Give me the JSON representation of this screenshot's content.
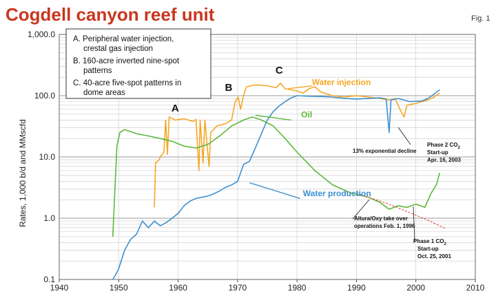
{
  "header": {
    "title": "Cogdell canyon reef unit",
    "fig_label": "Fig. 1"
  },
  "chart_data": {
    "type": "line",
    "ylabel": "Rates, 1,000 b/d and MMscfd",
    "xlim": [
      1940,
      2010
    ],
    "ylim": [
      0.1,
      1000
    ],
    "yscale": "log",
    "x_ticks": [
      "1940",
      "1950",
      "1960",
      "1970",
      "1980",
      "1990",
      "2000",
      "2010"
    ],
    "y_ticks": [
      "0.1",
      "1.0",
      "10.0",
      "100.0",
      "1,000.0"
    ],
    "legend": {
      "placement": "top-left",
      "lines": [
        "A. Peripheral water injection,",
        "crestal gas injection",
        "B. 160-acre inverted nine-spot",
        "patterns",
        "C. 40-acre five-spot patterns in",
        "dome areas"
      ]
    },
    "phase_letters": [
      {
        "text": "A",
        "x": 1959.5,
        "y": 55
      },
      {
        "text": "B",
        "x": 1968.5,
        "y": 120
      },
      {
        "text": "C",
        "x": 1977,
        "y": 230
      }
    ],
    "annotations": {
      "phase2": [
        "Phase 2 CO",
        "Start-up",
        "Apr. 16, 2003"
      ],
      "decline": "13% exponential decline",
      "altura": [
        "Altura/Oxy take over",
        "operations Feb. 1, 1996"
      ],
      "phase1": [
        "Phase 1 CO",
        "Start-up",
        "Oct. 25, 2001"
      ],
      "co2_sub": "2"
    },
    "series": [
      {
        "name": "Water injection",
        "color": "#f5a623",
        "label_pos": [
          1982.5,
          150
        ],
        "points": [
          [
            1956,
            1.5
          ],
          [
            1956.2,
            8
          ],
          [
            1956.8,
            9
          ],
          [
            1957,
            10
          ],
          [
            1957.6,
            12
          ],
          [
            1957.9,
            40
          ],
          [
            1958.2,
            11
          ],
          [
            1958.5,
            45
          ],
          [
            1959.5,
            40
          ],
          [
            1961,
            42
          ],
          [
            1962.5,
            38
          ],
          [
            1963,
            41
          ],
          [
            1963.5,
            6
          ],
          [
            1963.7,
            40
          ],
          [
            1964.2,
            8
          ],
          [
            1964.5,
            40
          ],
          [
            1965.2,
            7
          ],
          [
            1965.5,
            25
          ],
          [
            1966.5,
            32
          ],
          [
            1968,
            35
          ],
          [
            1969,
            40
          ],
          [
            1969.6,
            80
          ],
          [
            1970.1,
            95
          ],
          [
            1970.5,
            60
          ],
          [
            1971,
            100
          ],
          [
            1971.5,
            140
          ],
          [
            1973,
            150
          ],
          [
            1975,
            145
          ],
          [
            1976.5,
            135
          ],
          [
            1977.2,
            160
          ],
          [
            1978,
            130
          ],
          [
            1980,
            120
          ],
          [
            1981,
            110
          ],
          [
            1982,
            130
          ],
          [
            1983,
            140
          ],
          [
            1984,
            115
          ],
          [
            1986,
            100
          ],
          [
            1988,
            95
          ],
          [
            1990,
            100
          ],
          [
            1992,
            95
          ],
          [
            1994,
            90
          ],
          [
            1995.5,
            85
          ],
          [
            1996.5,
            90
          ],
          [
            1997.5,
            55
          ],
          [
            1998,
            45
          ],
          [
            1998.5,
            70
          ],
          [
            2000,
            75
          ],
          [
            2001,
            80
          ],
          [
            2002,
            85
          ],
          [
            2003,
            95
          ],
          [
            2004,
            110
          ]
        ]
      },
      {
        "name": "Oil",
        "color": "#5cb83a",
        "label_pos": [
          1980.7,
          44
        ],
        "points": [
          [
            1949,
            0.5
          ],
          [
            1949.7,
            15
          ],
          [
            1950.2,
            25
          ],
          [
            1951,
            28
          ],
          [
            1953,
            24
          ],
          [
            1955,
            22
          ],
          [
            1957,
            20
          ],
          [
            1959,
            18
          ],
          [
            1961,
            15
          ],
          [
            1963,
            14
          ],
          [
            1965,
            16
          ],
          [
            1967,
            22
          ],
          [
            1969,
            32
          ],
          [
            1971,
            40
          ],
          [
            1972.5,
            45
          ],
          [
            1974,
            40
          ],
          [
            1976,
            32
          ],
          [
            1978,
            20
          ],
          [
            1980,
            12
          ],
          [
            1983,
            6
          ],
          [
            1986,
            3.5
          ],
          [
            1989,
            2.6
          ],
          [
            1992,
            2.2
          ],
          [
            1994,
            1.8
          ],
          [
            1995.5,
            1.4
          ],
          [
            1997,
            1.6
          ],
          [
            1998.5,
            1.5
          ],
          [
            2000,
            1.7
          ],
          [
            2001.5,
            1.5
          ],
          [
            2002.5,
            2.5
          ],
          [
            2003.5,
            3.6
          ],
          [
            2004,
            5.5
          ]
        ]
      },
      {
        "name": "Water production",
        "color": "#3b8fd0",
        "label_pos": [
          1981,
          2.3
        ],
        "points": [
          [
            1949,
            0.1
          ],
          [
            1949.5,
            0.12
          ],
          [
            1950,
            0.15
          ],
          [
            1951,
            0.3
          ],
          [
            1952,
            0.45
          ],
          [
            1953,
            0.55
          ],
          [
            1954,
            0.9
          ],
          [
            1955,
            0.7
          ],
          [
            1956,
            0.9
          ],
          [
            1957,
            0.75
          ],
          [
            1958,
            0.85
          ],
          [
            1959,
            1.0
          ],
          [
            1960,
            1.2
          ],
          [
            1961,
            1.6
          ],
          [
            1962,
            1.9
          ],
          [
            1963,
            2.1
          ],
          [
            1964,
            2.2
          ],
          [
            1965,
            2.3
          ],
          [
            1966,
            2.5
          ],
          [
            1967,
            2.8
          ],
          [
            1968,
            3.2
          ],
          [
            1969,
            3.5
          ],
          [
            1970,
            4.0
          ],
          [
            1971,
            7.5
          ],
          [
            1972,
            8.5
          ],
          [
            1973,
            14
          ],
          [
            1974,
            24
          ],
          [
            1975,
            40
          ],
          [
            1976,
            55
          ],
          [
            1977,
            68
          ],
          [
            1978,
            80
          ],
          [
            1979,
            92
          ],
          [
            1980,
            100
          ],
          [
            1982,
            98
          ],
          [
            1984,
            97
          ],
          [
            1986,
            95
          ],
          [
            1988,
            90
          ],
          [
            1990,
            88
          ],
          [
            1992,
            90
          ],
          [
            1994,
            92
          ],
          [
            1995,
            88
          ],
          [
            1995.5,
            25
          ],
          [
            1995.8,
            85
          ],
          [
            1997,
            90
          ],
          [
            1999,
            80
          ],
          [
            2001,
            82
          ],
          [
            2002,
            90
          ],
          [
            2003,
            105
          ],
          [
            2004,
            125
          ]
        ]
      },
      {
        "name": "13% exponential decline",
        "color": "#e05a4a",
        "dashed": true,
        "points": [
          [
            1990,
            2.55
          ],
          [
            1992,
            2.2
          ],
          [
            1994,
            1.9
          ],
          [
            1996,
            1.62
          ],
          [
            1998,
            1.35
          ],
          [
            2000,
            1.12
          ],
          [
            2002,
            0.93
          ],
          [
            2004,
            0.75
          ],
          [
            2005,
            0.68
          ]
        ]
      }
    ]
  }
}
